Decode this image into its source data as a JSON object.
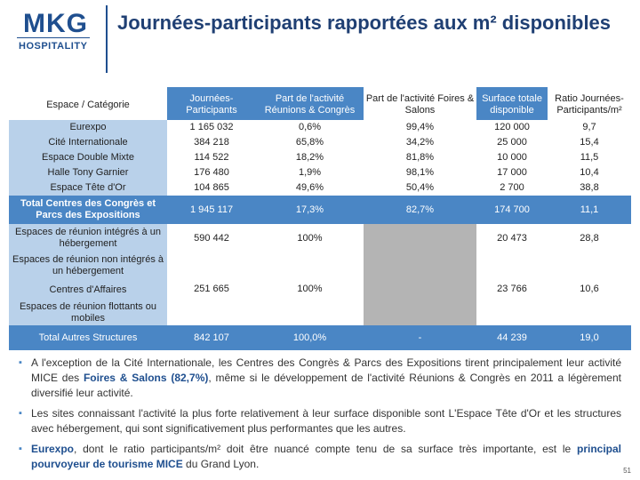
{
  "logo": {
    "main": "MKG",
    "sub": "HOSPITALITY"
  },
  "title": "Journées-participants rapportées aux m² disponibles",
  "table": {
    "headers": [
      "Espace / Catégorie",
      "Journées-Participants",
      "Part de l'activité Réunions & Congrès",
      "Part de l'activité Foires & Salons",
      "Surface totale disponible",
      "Ratio Journées-Participants/m²"
    ],
    "group1": {
      "names": [
        "Eurexpo",
        "Cité Internationale",
        "Espace Double Mixte",
        "Halle Tony Garnier",
        "Espace Tête d'Or"
      ],
      "jp": [
        "1 165 032",
        "384 218",
        "114 522",
        "176 480",
        "104 865"
      ],
      "rc": [
        "0,6%",
        "65,8%",
        "18,2%",
        "1,9%",
        "49,6%"
      ],
      "fs": [
        "99,4%",
        "34,2%",
        "81,8%",
        "98,1%",
        "50,4%"
      ],
      "surface": [
        "120 000",
        "25 000",
        "10 000",
        "17 000",
        "2 700"
      ],
      "ratio": [
        "9,7",
        "15,4",
        "11,5",
        "10,4",
        "38,8"
      ]
    },
    "total_centres": {
      "label": "Total Centres des Congrès et Parcs des Expositions",
      "jp": "1 945 117",
      "rc": "17,3%",
      "fs": "82,7%",
      "surface": "174 700",
      "ratio": "11,1"
    },
    "espaces_integres": {
      "label": "Espaces de réunion intégrés à un hébergement",
      "jp": "590 442",
      "rc": "100%",
      "surface": "20 473",
      "ratio": "28,8"
    },
    "espaces_non_integres": {
      "label": "Espaces de réunion non intégrés à un hébergement"
    },
    "centres_affaires": {
      "label": "Centres d'Affaires",
      "jp": "251 665",
      "rc": "100%",
      "surface": "23 766",
      "ratio": "10,6"
    },
    "espaces_flottants": {
      "label": "Espaces de réunion flottants ou mobiles"
    },
    "total_autres": {
      "label": "Total Autres Structures",
      "jp": "842 107",
      "rc": "100,0%",
      "fs": "-",
      "surface": "44 239",
      "ratio": "19,0"
    }
  },
  "bullets": {
    "b1": {
      "pre": "A l'exception de la Cité Internationale, les Centres des Congrès & Parcs des Expositions tirent principalement leur activité MICE des ",
      "hl": "Foires & Salons (82,7%)",
      "post": ", même si le développement de l'activité Réunions & Congrès en 2011 a légèrement diversifié leur activité."
    },
    "b2": "Les sites connaissant l'activité la plus forte relativement à leur surface disponible sont L'Espace Tête d'Or et les structures avec hébergement, qui sont significativement plus performantes que les autres.",
    "b3": {
      "hl1": "Eurexpo",
      "mid": ", dont le ratio participants/m² doit être nuancé compte tenu de sa surface très importante, est le ",
      "hl2": "principal pourvoyeur de tourisme MICE",
      "post": " du Grand Lyon."
    }
  },
  "page_number": "51",
  "colors": {
    "header_blue": "#4a86c5",
    "light_blue": "#b9d1ea",
    "grey": "#b4b4b4",
    "title_blue": "#1f3f73"
  }
}
